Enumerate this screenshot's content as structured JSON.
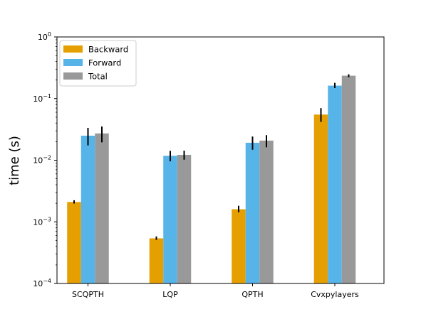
{
  "chart_data": {
    "type": "bar",
    "title": "",
    "xlabel": "",
    "ylabel": "time (s)",
    "yscale": "log",
    "ylim": [
      0.0001,
      1
    ],
    "grid": false,
    "legend_position": "top-left",
    "categories": [
      "SCQPTH",
      "LQP",
      "QPTH",
      "Cvxpylayers"
    ],
    "y_ticks": [
      {
        "value": 0.0001,
        "label_base": "10",
        "label_exp": "−4"
      },
      {
        "value": 0.001,
        "label_base": "10",
        "label_exp": "−3"
      },
      {
        "value": 0.01,
        "label_base": "10",
        "label_exp": "−2"
      },
      {
        "value": 0.1,
        "label_base": "10",
        "label_exp": "−1"
      },
      {
        "value": 1,
        "label_base": "10",
        "label_exp": "0"
      }
    ],
    "series": [
      {
        "name": "Backward",
        "color": "#e69f00",
        "values": [
          0.0021,
          0.00054,
          0.0016,
          0.055
        ],
        "err_low": [
          0.00198,
          0.00051,
          0.00143,
          0.042
        ],
        "err_high": [
          0.00224,
          0.00058,
          0.00182,
          0.07
        ]
      },
      {
        "name": "Forward",
        "color": "#56b4e9",
        "values": [
          0.025,
          0.0118,
          0.0192,
          0.162
        ],
        "err_low": [
          0.0174,
          0.0096,
          0.0148,
          0.148
        ],
        "err_high": [
          0.0335,
          0.0142,
          0.0242,
          0.18
        ]
      },
      {
        "name": "Total",
        "color": "#999999",
        "values": [
          0.0272,
          0.0122,
          0.0208,
          0.235
        ],
        "err_low": [
          0.0195,
          0.0102,
          0.0162,
          0.222
        ],
        "err_high": [
          0.0352,
          0.0143,
          0.0255,
          0.248
        ]
      }
    ]
  }
}
